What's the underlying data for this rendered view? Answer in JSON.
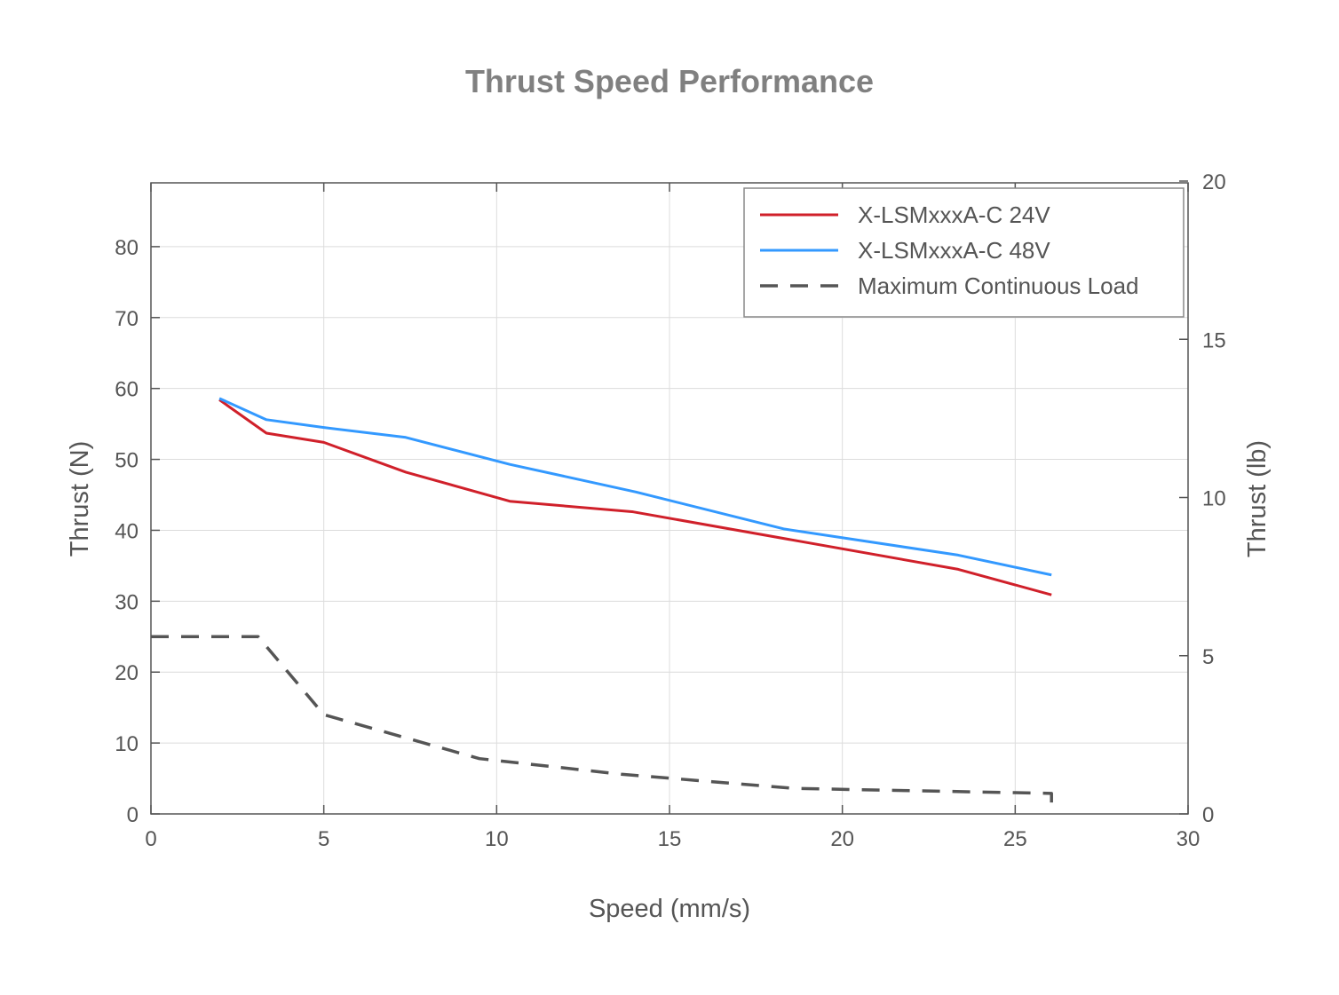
{
  "chart_data": {
    "type": "line",
    "title": "Thrust Speed Performance",
    "xlabel": "Speed (mm/s)",
    "ylabel": "Thrust (N)",
    "ylabel_right": "Thrust (lb)",
    "xlim": [
      0,
      30
    ],
    "ylim": [
      0,
      89
    ],
    "ylim_right": [
      0,
      20
    ],
    "xticks": [
      0,
      5,
      10,
      15,
      20,
      25,
      30
    ],
    "yticks": [
      0,
      10,
      20,
      30,
      40,
      50,
      60,
      70,
      80
    ],
    "yticks_right": [
      0,
      5,
      10,
      15,
      20
    ],
    "grid": true,
    "legend_position": "top-right",
    "series": [
      {
        "name": "X-LSMxxxA-C 24V",
        "color": "#d0202a",
        "style": "solid",
        "x": [
          1.98,
          3.34,
          5.0,
          7.37,
          10.38,
          13.95,
          23.35,
          26.05
        ],
        "y": [
          58.4,
          53.7,
          52.4,
          48.2,
          44.1,
          42.6,
          34.5,
          30.9
        ]
      },
      {
        "name": "X-LSMxxxA-C 48V",
        "color": "#3399ff",
        "style": "solid",
        "x": [
          1.98,
          3.34,
          5.0,
          7.37,
          10.38,
          14.03,
          18.3,
          23.35,
          26.05
        ],
        "y": [
          58.6,
          55.6,
          54.5,
          53.1,
          49.3,
          45.4,
          40.2,
          36.5,
          33.7
        ]
      },
      {
        "name": "Maximum Continuous Load",
        "color": "#555555",
        "style": "dashed",
        "x": [
          0,
          3.1,
          5.0,
          9.5,
          13.6,
          18.6,
          26.05,
          26.05
        ],
        "y": [
          25,
          25,
          14.0,
          7.8,
          5.6,
          3.6,
          2.9,
          0
        ]
      }
    ]
  }
}
